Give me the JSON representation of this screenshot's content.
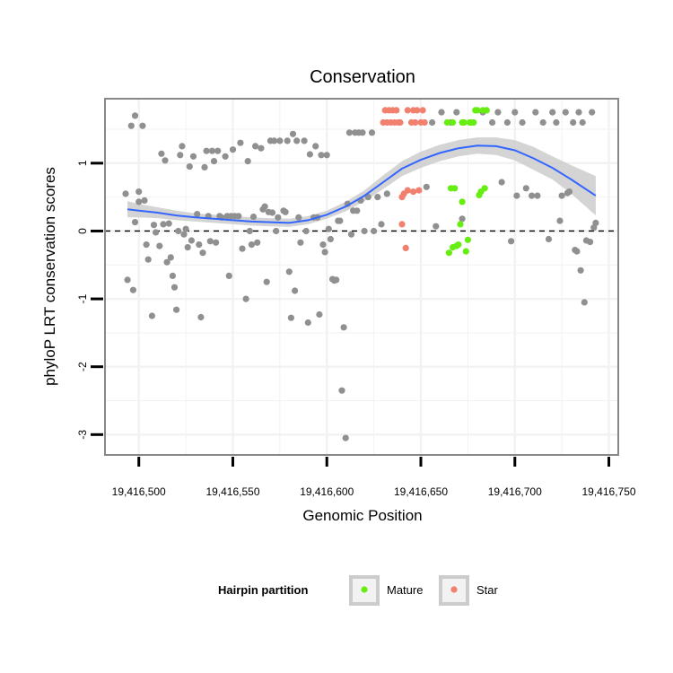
{
  "chart_data": {
    "type": "scatter",
    "title": "Conservation",
    "xlabel": "Genomic Position",
    "ylabel": "phyloP LRT conservation scores",
    "xlim": [
      19416482,
      19416755
    ],
    "ylim": [
      -3.3,
      1.95
    ],
    "x_ticks": [
      {
        "value": 19416500,
        "label": "19,416,500"
      },
      {
        "value": 19416550,
        "label": "19,416,550"
      },
      {
        "value": 19416600,
        "label": "19,416,600"
      },
      {
        "value": 19416650,
        "label": "19,416,650"
      },
      {
        "value": 19416700,
        "label": "19,416,700"
      },
      {
        "value": 19416750,
        "label": "19,416,750"
      }
    ],
    "y_ticks": [
      {
        "value": 1,
        "label": "1"
      },
      {
        "value": 0,
        "label": "0"
      },
      {
        "value": -1,
        "label": "-1"
      },
      {
        "value": -2,
        "label": "-2"
      },
      {
        "value": -3,
        "label": "-3"
      }
    ],
    "reference_line": {
      "y": 0,
      "style": "dashed"
    },
    "colors": {
      "other": "#909090",
      "mature": "#66ee11",
      "star": "#f2806f",
      "smooth": "#3366ff",
      "ribbon": "#cccccc",
      "grid": "#f2f2f2",
      "border": "#888888"
    },
    "legend": {
      "title": "Hairpin partition",
      "position": "bottom",
      "entries": [
        {
          "label": "Mature",
          "color": "#66ee11"
        },
        {
          "label": "Star",
          "color": "#f2806f"
        }
      ]
    },
    "series": [
      {
        "name": "Other",
        "points": [
          [
            19416493,
            0.55
          ],
          [
            19416494,
            -0.72
          ],
          [
            19416496,
            1.55
          ],
          [
            19416497,
            -0.87
          ],
          [
            19416498,
            1.7
          ],
          [
            19416498,
            0.13
          ],
          [
            19416500,
            0.58
          ],
          [
            19416500,
            0.43
          ],
          [
            19416502,
            1.55
          ],
          [
            19416503,
            0.45
          ],
          [
            19416504,
            -0.2
          ],
          [
            19416505,
            -0.42
          ],
          [
            19416507,
            -1.25
          ],
          [
            19416508,
            0.09
          ],
          [
            19416509,
            -0.02
          ],
          [
            19416511,
            -0.22
          ],
          [
            19416512,
            1.14
          ],
          [
            19416513,
            0.1
          ],
          [
            19416514,
            1.04
          ],
          [
            19416515,
            -0.46
          ],
          [
            19416516,
            0.11
          ],
          [
            19416517,
            -0.39
          ],
          [
            19416518,
            -0.66
          ],
          [
            19416519,
            -0.83
          ],
          [
            19416520,
            -1.16
          ],
          [
            19416521,
            0.0
          ],
          [
            19416522,
            1.12
          ],
          [
            19416523,
            1.25
          ],
          [
            19416524,
            -0.05
          ],
          [
            19416525,
            0.03
          ],
          [
            19416526,
            -0.24
          ],
          [
            19416527,
            0.95
          ],
          [
            19416528,
            -0.14
          ],
          [
            19416529,
            1.1
          ],
          [
            19416531,
            0.25
          ],
          [
            19416532,
            -0.2
          ],
          [
            19416533,
            -1.27
          ],
          [
            19416534,
            -0.32
          ],
          [
            19416535,
            0.94
          ],
          [
            19416536,
            1.18
          ],
          [
            19416537,
            0.22
          ],
          [
            19416538,
            -0.15
          ],
          [
            19416539,
            1.18
          ],
          [
            19416540,
            1.03
          ],
          [
            19416541,
            -0.17
          ],
          [
            19416542,
            1.18
          ],
          [
            19416543,
            0.22
          ],
          [
            19416544,
            0.2
          ],
          [
            19416546,
            1.1
          ],
          [
            19416547,
            0.22
          ],
          [
            19416548,
            -0.66
          ],
          [
            19416549,
            0.22
          ],
          [
            19416550,
            1.2
          ],
          [
            19416551,
            0.22
          ],
          [
            19416553,
            0.22
          ],
          [
            19416554,
            1.3
          ],
          [
            19416555,
            -0.26
          ],
          [
            19416557,
            -1.0
          ],
          [
            19416558,
            1.03
          ],
          [
            19416559,
            0.0
          ],
          [
            19416560,
            -0.2
          ],
          [
            19416561,
            0.21
          ],
          [
            19416562,
            1.25
          ],
          [
            19416563,
            -0.17
          ],
          [
            19416565,
            1.22
          ],
          [
            19416566,
            0.32
          ],
          [
            19416567,
            0.36
          ],
          [
            19416568,
            -0.75
          ],
          [
            19416569,
            0.28
          ],
          [
            19416570,
            1.33
          ],
          [
            19416571,
            0.27
          ],
          [
            19416572,
            1.33
          ],
          [
            19416573,
            0.0
          ],
          [
            19416574,
            0.2
          ],
          [
            19416575,
            1.33
          ],
          [
            19416577,
            0.3
          ],
          [
            19416578,
            0.28
          ],
          [
            19416579,
            1.33
          ],
          [
            19416580,
            -0.6
          ],
          [
            19416581,
            -1.28
          ],
          [
            19416582,
            1.43
          ],
          [
            19416583,
            -0.88
          ],
          [
            19416584,
            1.33
          ],
          [
            19416585,
            0.2
          ],
          [
            19416586,
            -0.17
          ],
          [
            19416588,
            1.33
          ],
          [
            19416589,
            0.0
          ],
          [
            19416590,
            -1.35
          ],
          [
            19416591,
            1.13
          ],
          [
            19416593,
            0.2
          ],
          [
            19416594,
            1.25
          ],
          [
            19416595,
            0.2
          ],
          [
            19416596,
            -1.23
          ],
          [
            19416597,
            1.12
          ],
          [
            19416598,
            -0.2
          ],
          [
            19416599,
            -0.31
          ],
          [
            19416600,
            1.12
          ],
          [
            19416601,
            0.03
          ],
          [
            19416602,
            -0.12
          ],
          [
            19416603,
            -0.71
          ],
          [
            19416604,
            -0.73
          ],
          [
            19416605,
            -0.72
          ],
          [
            19416606,
            0.15
          ],
          [
            19416607,
            0.15
          ],
          [
            19416608,
            -2.35
          ],
          [
            19416609,
            -1.42
          ],
          [
            19416610,
            -3.05
          ],
          [
            19416611,
            0.4
          ],
          [
            19416612,
            1.45
          ],
          [
            19416613,
            -0.05
          ],
          [
            19416614,
            0.3
          ],
          [
            19416615,
            1.45
          ],
          [
            19416616,
            0.3
          ],
          [
            19416617,
            1.45
          ],
          [
            19416618,
            0.45
          ],
          [
            19416619,
            1.45
          ],
          [
            19416620,
            0.0
          ],
          [
            19416622,
            0.5
          ],
          [
            19416624,
            1.45
          ],
          [
            19416625,
            0.0
          ],
          [
            19416627,
            0.5
          ],
          [
            19416629,
            0.1
          ],
          [
            19416632,
            0.55
          ],
          [
            19416653,
            0.65
          ],
          [
            19416656,
            1.6
          ],
          [
            19416658,
            0.07
          ],
          [
            19416661,
            1.75
          ],
          [
            19416666,
            1.6
          ],
          [
            19416669,
            1.75
          ],
          [
            19416672,
            0.18
          ],
          [
            19416678,
            1.6
          ],
          [
            19416683,
            1.75
          ],
          [
            19416688,
            1.6
          ],
          [
            19416691,
            1.75
          ],
          [
            19416693,
            0.72
          ],
          [
            19416696,
            1.6
          ],
          [
            19416698,
            -0.15
          ],
          [
            19416700,
            1.75
          ],
          [
            19416701,
            0.52
          ],
          [
            19416704,
            1.6
          ],
          [
            19416706,
            0.63
          ],
          [
            19416709,
            0.52
          ],
          [
            19416711,
            1.75
          ],
          [
            19416712,
            0.52
          ],
          [
            19416715,
            1.6
          ],
          [
            19416718,
            -0.12
          ],
          [
            19416720,
            1.75
          ],
          [
            19416722,
            1.6
          ],
          [
            19416724,
            0.15
          ],
          [
            19416725,
            0.52
          ],
          [
            19416727,
            1.75
          ],
          [
            19416728,
            0.56
          ],
          [
            19416729,
            0.58
          ],
          [
            19416731,
            1.6
          ],
          [
            19416732,
            -0.28
          ],
          [
            19416733,
            -0.3
          ],
          [
            19416734,
            1.75
          ],
          [
            19416735,
            -0.58
          ],
          [
            19416736,
            1.6
          ],
          [
            19416737,
            -1.05
          ],
          [
            19416738,
            -0.14
          ],
          [
            19416740,
            -0.16
          ],
          [
            19416741,
            1.75
          ],
          [
            19416742,
            0.05
          ],
          [
            19416743,
            0.12
          ]
        ]
      },
      {
        "name": "Mature",
        "points": [
          [
            19416664,
            1.6
          ],
          [
            19416665,
            -0.32
          ],
          [
            19416666,
            0.63
          ],
          [
            19416667,
            -0.24
          ],
          [
            19416667,
            1.6
          ],
          [
            19416668,
            0.63
          ],
          [
            19416669,
            -0.22
          ],
          [
            19416670,
            -0.2
          ],
          [
            19416671,
            0.1
          ],
          [
            19416672,
            1.6
          ],
          [
            19416672,
            0.43
          ],
          [
            19416673,
            1.6
          ],
          [
            19416674,
            -0.3
          ],
          [
            19416675,
            -0.13
          ],
          [
            19416676,
            1.6
          ],
          [
            19416677,
            1.6
          ],
          [
            19416678,
            1.6
          ],
          [
            19416679,
            1.78
          ],
          [
            19416680,
            1.78
          ],
          [
            19416681,
            0.53
          ],
          [
            19416682,
            0.58
          ],
          [
            19416683,
            1.78
          ],
          [
            19416684,
            0.63
          ],
          [
            19416685,
            1.78
          ]
        ]
      },
      {
        "name": "Star",
        "points": [
          [
            19416630,
            1.6
          ],
          [
            19416631,
            1.78
          ],
          [
            19416632,
            1.6
          ],
          [
            19416633,
            1.78
          ],
          [
            19416634,
            1.6
          ],
          [
            19416635,
            1.78
          ],
          [
            19416636,
            1.6
          ],
          [
            19416637,
            1.78
          ],
          [
            19416638,
            1.6
          ],
          [
            19416639,
            1.6
          ],
          [
            19416640,
            0.1
          ],
          [
            19416640,
            0.5
          ],
          [
            19416641,
            0.55
          ],
          [
            19416642,
            -0.25
          ],
          [
            19416643,
            1.78
          ],
          [
            19416643,
            0.6
          ],
          [
            19416645,
            1.6
          ],
          [
            19416646,
            0.58
          ],
          [
            19416646,
            1.78
          ],
          [
            19416647,
            1.6
          ],
          [
            19416648,
            1.78
          ],
          [
            19416649,
            0.6
          ],
          [
            19416650,
            1.6
          ],
          [
            19416651,
            1.78
          ],
          [
            19416652,
            1.6
          ]
        ]
      }
    ],
    "smooth": {
      "method": "loess",
      "x": [
        19416494,
        19416500,
        19416510,
        19416520,
        19416530,
        19416540,
        19416550,
        19416560,
        19416570,
        19416580,
        19416590,
        19416600,
        19416610,
        19416620,
        19416630,
        19416640,
        19416650,
        19416660,
        19416670,
        19416680,
        19416690,
        19416700,
        19416710,
        19416720,
        19416730,
        19416743
      ],
      "y": [
        0.32,
        0.3,
        0.27,
        0.23,
        0.2,
        0.18,
        0.16,
        0.14,
        0.13,
        0.12,
        0.16,
        0.24,
        0.36,
        0.52,
        0.72,
        0.92,
        1.05,
        1.15,
        1.22,
        1.26,
        1.25,
        1.19,
        1.07,
        0.93,
        0.76,
        0.52
      ],
      "lower": [
        0.2,
        0.2,
        0.19,
        0.16,
        0.14,
        0.12,
        0.1,
        0.08,
        0.07,
        0.06,
        0.1,
        0.18,
        0.29,
        0.44,
        0.62,
        0.81,
        0.93,
        1.03,
        1.1,
        1.14,
        1.12,
        1.04,
        0.9,
        0.76,
        0.55,
        0.23
      ],
      "upper": [
        0.44,
        0.4,
        0.35,
        0.3,
        0.26,
        0.24,
        0.22,
        0.2,
        0.19,
        0.18,
        0.22,
        0.3,
        0.43,
        0.6,
        0.82,
        1.03,
        1.17,
        1.27,
        1.34,
        1.38,
        1.38,
        1.34,
        1.24,
        1.1,
        0.97,
        0.81
      ]
    }
  }
}
